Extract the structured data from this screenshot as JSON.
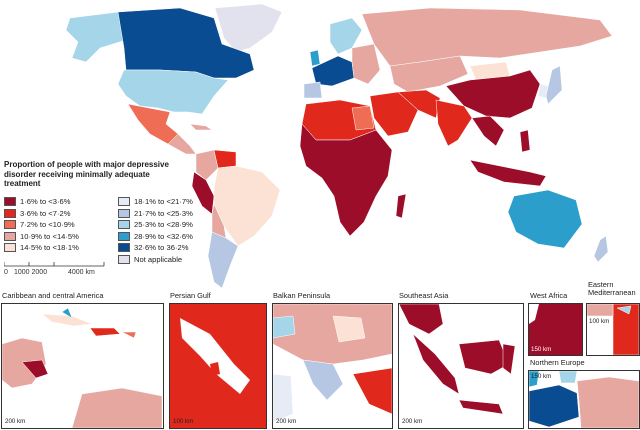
{
  "legend": {
    "title_line1": "Proportion of people with major depressive",
    "title_line2": "disorder receiving minimally adequate",
    "title_line3": "treatment",
    "items_left": [
      {
        "label": "1·6% to <3·6%",
        "color": "#9c0d2a"
      },
      {
        "label": "3·6% to <7·2%",
        "color": "#e0281d"
      },
      {
        "label": "7·2% to <10·9%",
        "color": "#ef6d54"
      },
      {
        "label": "10·9% to <14·5%",
        "color": "#e5a79f"
      },
      {
        "label": "14·5% to <18·1%",
        "color": "#fbe2d4"
      }
    ],
    "items_right": [
      {
        "label": "18·1% to <21·7%",
        "color": "#e6ecf6"
      },
      {
        "label": "21·7% to <25·3%",
        "color": "#b6c7e3"
      },
      {
        "label": "25·3% to <28·9%",
        "color": "#a5d5e8"
      },
      {
        "label": "28·9% to <32·6%",
        "color": "#2b9ecb"
      },
      {
        "label": "32·6% to 36·2%",
        "color": "#0a4c91"
      },
      {
        "label": "Not applicable",
        "color": "#e2e2ee"
      }
    ]
  },
  "scale_bar": {
    "label_0": "0",
    "label_1000_2000": "1000 2000",
    "label_4000": "4000 km"
  },
  "insets": [
    {
      "title": "Caribbean and central America",
      "scale": "200 km"
    },
    {
      "title": "Persian Gulf",
      "scale": "100 km"
    },
    {
      "title": "Balkan Peninsula",
      "scale": "200 km"
    },
    {
      "title": "Southeast Asia",
      "scale": "200 km"
    },
    {
      "title": "West Africa",
      "scale": "150 km"
    },
    {
      "title_line1": "Eastern",
      "title_line2": "Mediterranean",
      "scale": "100 km"
    },
    {
      "title": "Northern Europe",
      "scale": "150 km"
    }
  ]
}
